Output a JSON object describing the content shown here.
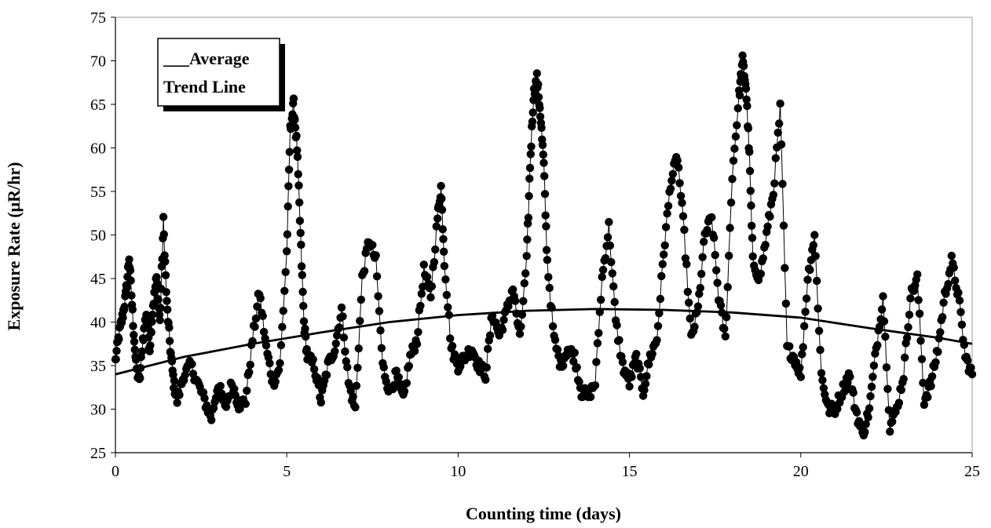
{
  "chart_data": {
    "type": "scatter",
    "title": "",
    "xlabel": "Counting time (days)",
    "ylabel": "Exposure Rate (μR/hr)",
    "xlim": [
      0,
      25
    ],
    "ylim": [
      25,
      75
    ],
    "x_ticks": [
      0,
      5,
      10,
      15,
      20,
      25
    ],
    "y_ticks": [
      25,
      30,
      35,
      40,
      45,
      50,
      55,
      60,
      65,
      70,
      75
    ],
    "grid": false,
    "legend": {
      "placement": "top-left",
      "line1": "___Average",
      "line2": "Trend Line"
    },
    "colors": {
      "points": "#000000",
      "trend": "#000000",
      "background": "#ffffff"
    },
    "series": [
      {
        "kind": "scatter-connected",
        "keypoints": [
          [
            0.0,
            35.5
          ],
          [
            0.1,
            38.5
          ],
          [
            0.2,
            40.5
          ],
          [
            0.3,
            43
          ],
          [
            0.4,
            47.5
          ],
          [
            0.5,
            41
          ],
          [
            0.6,
            35
          ],
          [
            0.7,
            33
          ],
          [
            0.8,
            38
          ],
          [
            0.9,
            41
          ],
          [
            1.0,
            37
          ],
          [
            1.1,
            42
          ],
          [
            1.2,
            45
          ],
          [
            1.3,
            40
          ],
          [
            1.4,
            51.5
          ],
          [
            1.5,
            42
          ],
          [
            1.6,
            37
          ],
          [
            1.7,
            33
          ],
          [
            1.8,
            31
          ],
          [
            2.0,
            34
          ],
          [
            2.2,
            35
          ],
          [
            2.4,
            33
          ],
          [
            2.6,
            31
          ],
          [
            2.8,
            29
          ],
          [
            3.0,
            33
          ],
          [
            3.2,
            30
          ],
          [
            3.4,
            33
          ],
          [
            3.6,
            30.5
          ],
          [
            3.8,
            31
          ],
          [
            4.0,
            38
          ],
          [
            4.2,
            43.5
          ],
          [
            4.4,
            37
          ],
          [
            4.6,
            33
          ],
          [
            4.8,
            35
          ],
          [
            5.0,
            48
          ],
          [
            5.1,
            62
          ],
          [
            5.2,
            65
          ],
          [
            5.3,
            60
          ],
          [
            5.4,
            50
          ],
          [
            5.5,
            40
          ],
          [
            5.6,
            36
          ],
          [
            5.8,
            35
          ],
          [
            6.0,
            31
          ],
          [
            6.2,
            35
          ],
          [
            6.4,
            37
          ],
          [
            6.6,
            41.5
          ],
          [
            6.8,
            33
          ],
          [
            7.0,
            30
          ],
          [
            7.2,
            45
          ],
          [
            7.4,
            49.5
          ],
          [
            7.6,
            47
          ],
          [
            7.8,
            35
          ],
          [
            8.0,
            32
          ],
          [
            8.2,
            34
          ],
          [
            8.4,
            31
          ],
          [
            8.6,
            36
          ],
          [
            8.8,
            38
          ],
          [
            9.0,
            46
          ],
          [
            9.2,
            43
          ],
          [
            9.4,
            52
          ],
          [
            9.5,
            55.5
          ],
          [
            9.6,
            47
          ],
          [
            9.8,
            37
          ],
          [
            10.0,
            35
          ],
          [
            10.2,
            36
          ],
          [
            10.4,
            37
          ],
          [
            10.6,
            35
          ],
          [
            10.8,
            34
          ],
          [
            11.0,
            41
          ],
          [
            11.2,
            38.5
          ],
          [
            11.4,
            41
          ],
          [
            11.6,
            44
          ],
          [
            11.8,
            38
          ],
          [
            12.0,
            47
          ],
          [
            12.1,
            58
          ],
          [
            12.2,
            66
          ],
          [
            12.3,
            68
          ],
          [
            12.4,
            64
          ],
          [
            12.5,
            58
          ],
          [
            12.6,
            47
          ],
          [
            12.8,
            38
          ],
          [
            13.0,
            35
          ],
          [
            13.2,
            37
          ],
          [
            13.4,
            36
          ],
          [
            13.6,
            32
          ],
          [
            13.8,
            31.5
          ],
          [
            14.0,
            33
          ],
          [
            14.2,
            45
          ],
          [
            14.4,
            51
          ],
          [
            14.6,
            40
          ],
          [
            14.8,
            35
          ],
          [
            15.0,
            33
          ],
          [
            15.2,
            36
          ],
          [
            15.4,
            32
          ],
          [
            15.6,
            36
          ],
          [
            15.8,
            38
          ],
          [
            16.0,
            48
          ],
          [
            16.2,
            56
          ],
          [
            16.4,
            59
          ],
          [
            16.6,
            50
          ],
          [
            16.8,
            38
          ],
          [
            17.0,
            41.5
          ],
          [
            17.2,
            50
          ],
          [
            17.4,
            52
          ],
          [
            17.6,
            43
          ],
          [
            17.8,
            38
          ],
          [
            18.0,
            57
          ],
          [
            18.2,
            66
          ],
          [
            18.3,
            70
          ],
          [
            18.4,
            67
          ],
          [
            18.5,
            59
          ],
          [
            18.6,
            47
          ],
          [
            18.8,
            45
          ],
          [
            19.0,
            50
          ],
          [
            19.2,
            55
          ],
          [
            19.4,
            64.5
          ],
          [
            19.6,
            37
          ],
          [
            19.8,
            36
          ],
          [
            20.0,
            34
          ],
          [
            20.2,
            45
          ],
          [
            20.4,
            50
          ],
          [
            20.6,
            34
          ],
          [
            20.8,
            30
          ],
          [
            21.0,
            30
          ],
          [
            21.2,
            32
          ],
          [
            21.4,
            34
          ],
          [
            21.6,
            30
          ],
          [
            21.8,
            27
          ],
          [
            22.0,
            30
          ],
          [
            22.2,
            37
          ],
          [
            22.4,
            43
          ],
          [
            22.6,
            28
          ],
          [
            22.8,
            30
          ],
          [
            23.0,
            34
          ],
          [
            23.2,
            43
          ],
          [
            23.4,
            45
          ],
          [
            23.6,
            31
          ],
          [
            23.8,
            33
          ],
          [
            24.0,
            37
          ],
          [
            24.2,
            43
          ],
          [
            24.4,
            47
          ],
          [
            24.6,
            43
          ],
          [
            24.8,
            36
          ],
          [
            25.0,
            34
          ]
        ]
      },
      {
        "kind": "line",
        "x": [
          0,
          2,
          4,
          6,
          8,
          10,
          12,
          14,
          16,
          18,
          20,
          22,
          24,
          25
        ],
        "values": [
          34,
          36,
          37.5,
          38.8,
          40,
          40.8,
          41.3,
          41.5,
          41.4,
          41.1,
          40.5,
          39.3,
          38.2,
          37.5
        ]
      }
    ]
  }
}
